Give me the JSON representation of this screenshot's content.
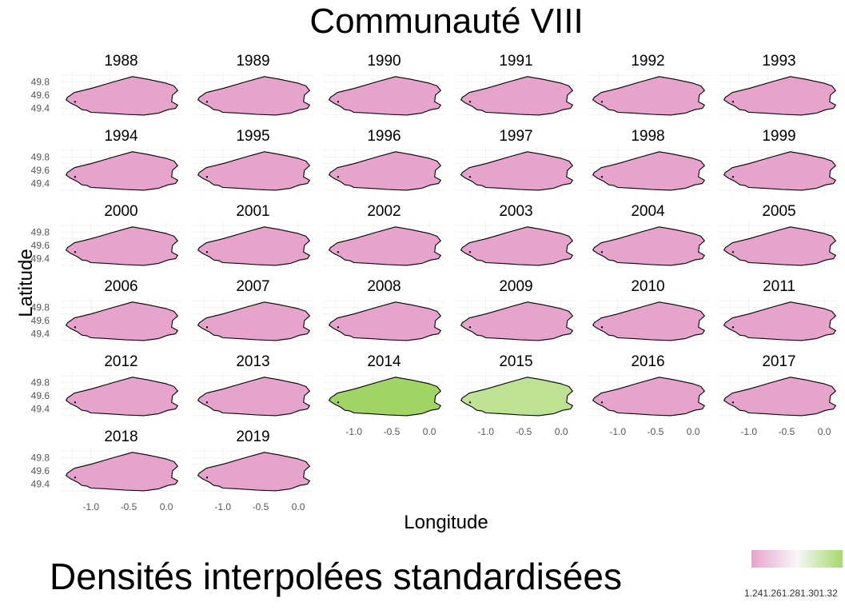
{
  "chart_data": {
    "type": "heatmap",
    "title": "Communauté VIII",
    "xlabel": "Longitude",
    "ylabel": "Latitude",
    "legend": {
      "title": "Densités interpolées standardisées",
      "ticks": [
        "1.24",
        "1.26",
        "1.28",
        "1.30",
        "1.32"
      ],
      "tick_text": "1.241.261.281.301.32",
      "colors": [
        "#e6a3cc",
        "#f7f7f7",
        "#a6d96a"
      ],
      "range": [
        1.23,
        1.325
      ],
      "placement": "bottom-right"
    },
    "xlim": [
      -1.4,
      0.2
    ],
    "ylim": [
      49.25,
      49.95
    ],
    "x_ticks": [
      -1.0,
      -0.5,
      0.0
    ],
    "x_tick_labels": [
      "-1.0",
      "-0.5",
      "0.0"
    ],
    "y_ticks": [
      49.4,
      49.6,
      49.8
    ],
    "y_tick_labels": [
      "49.4",
      "49.6",
      "49.8"
    ],
    "grid": true,
    "facet_layout": {
      "ncol": 6,
      "nrow": 6
    },
    "panels": [
      {
        "year": "1988",
        "value": 1.24,
        "color": "#e6a3cc"
      },
      {
        "year": "1989",
        "value": 1.24,
        "color": "#e6a3cc"
      },
      {
        "year": "1990",
        "value": 1.24,
        "color": "#e6a3cc"
      },
      {
        "year": "1991",
        "value": 1.24,
        "color": "#e6a3cc"
      },
      {
        "year": "1992",
        "value": 1.24,
        "color": "#e6a3cc"
      },
      {
        "year": "1993",
        "value": 1.24,
        "color": "#e6a3cc"
      },
      {
        "year": "1994",
        "value": 1.24,
        "color": "#e6a3cc"
      },
      {
        "year": "1995",
        "value": 1.24,
        "color": "#e6a3cc"
      },
      {
        "year": "1996",
        "value": 1.24,
        "color": "#e6a3cc"
      },
      {
        "year": "1997",
        "value": 1.24,
        "color": "#e6a3cc"
      },
      {
        "year": "1998",
        "value": 1.24,
        "color": "#e6a3cc"
      },
      {
        "year": "1999",
        "value": 1.24,
        "color": "#e6a3cc"
      },
      {
        "year": "2000",
        "value": 1.24,
        "color": "#e6a3cc"
      },
      {
        "year": "2001",
        "value": 1.24,
        "color": "#e6a3cc"
      },
      {
        "year": "2002",
        "value": 1.24,
        "color": "#e6a3cc"
      },
      {
        "year": "2003",
        "value": 1.24,
        "color": "#e6a3cc"
      },
      {
        "year": "2004",
        "value": 1.24,
        "color": "#e6a3cc"
      },
      {
        "year": "2005",
        "value": 1.24,
        "color": "#e6a3cc"
      },
      {
        "year": "2006",
        "value": 1.24,
        "color": "#e6a3cc"
      },
      {
        "year": "2007",
        "value": 1.24,
        "color": "#e6a3cc"
      },
      {
        "year": "2008",
        "value": 1.24,
        "color": "#e6a3cc"
      },
      {
        "year": "2009",
        "value": 1.24,
        "color": "#e6a3cc"
      },
      {
        "year": "2010",
        "value": 1.24,
        "color": "#e6a3cc"
      },
      {
        "year": "2011",
        "value": 1.24,
        "color": "#e6a3cc"
      },
      {
        "year": "2012",
        "value": 1.24,
        "color": "#e6a3cc"
      },
      {
        "year": "2013",
        "value": 1.24,
        "color": "#e6a3cc"
      },
      {
        "year": "2014",
        "value": 1.32,
        "color": "#a1d365"
      },
      {
        "year": "2015",
        "value": 1.3,
        "color": "#bde294"
      },
      {
        "year": "2016",
        "value": 1.24,
        "color": "#e6a3cc"
      },
      {
        "year": "2017",
        "value": 1.24,
        "color": "#e6a3cc"
      },
      {
        "year": "2018",
        "value": 1.24,
        "color": "#e6a3cc"
      },
      {
        "year": "2019",
        "value": 1.24,
        "color": "#e6a3cc"
      }
    ]
  }
}
